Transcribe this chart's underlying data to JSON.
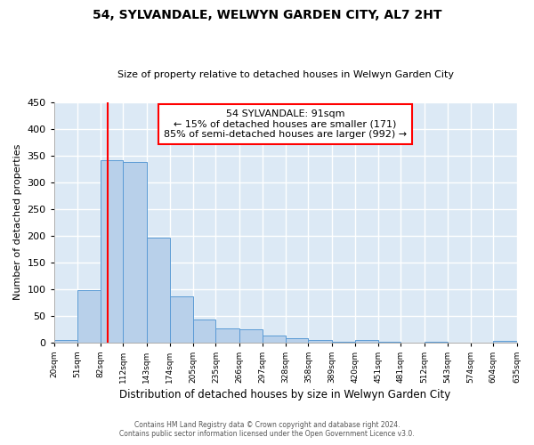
{
  "title": "54, SYLVANDALE, WELWYN GARDEN CITY, AL7 2HT",
  "subtitle": "Size of property relative to detached houses in Welwyn Garden City",
  "xlabel": "Distribution of detached houses by size in Welwyn Garden City",
  "ylabel": "Number of detached properties",
  "bin_edges": [
    20,
    51,
    82,
    112,
    143,
    174,
    205,
    235,
    266,
    297,
    328,
    358,
    389,
    420,
    451,
    481,
    512,
    543,
    574,
    604,
    635
  ],
  "bin_labels": [
    "20sqm",
    "51sqm",
    "82sqm",
    "112sqm",
    "143sqm",
    "174sqm",
    "205sqm",
    "235sqm",
    "266sqm",
    "297sqm",
    "328sqm",
    "358sqm",
    "389sqm",
    "420sqm",
    "451sqm",
    "481sqm",
    "512sqm",
    "543sqm",
    "574sqm",
    "604sqm",
    "635sqm"
  ],
  "counts": [
    5,
    98,
    342,
    338,
    197,
    86,
    43,
    26,
    25,
    12,
    7,
    5,
    1,
    5,
    1,
    0,
    1,
    0,
    0,
    2
  ],
  "bar_color": "#b8d0ea",
  "bar_edge_color": "#5b9bd5",
  "property_line_x": 91,
  "property_line_color": "red",
  "annotation_text": "54 SYLVANDALE: 91sqm\n← 15% of detached houses are smaller (171)\n85% of semi-detached houses are larger (992) →",
  "annotation_box_color": "white",
  "annotation_box_edge_color": "red",
  "ylim": [
    0,
    450
  ],
  "footer_line1": "Contains HM Land Registry data © Crown copyright and database right 2024.",
  "footer_line2": "Contains public sector information licensed under the Open Government Licence v3.0.",
  "background_color": "#ffffff",
  "plot_background_color": "#dce9f5",
  "grid_color": "white"
}
